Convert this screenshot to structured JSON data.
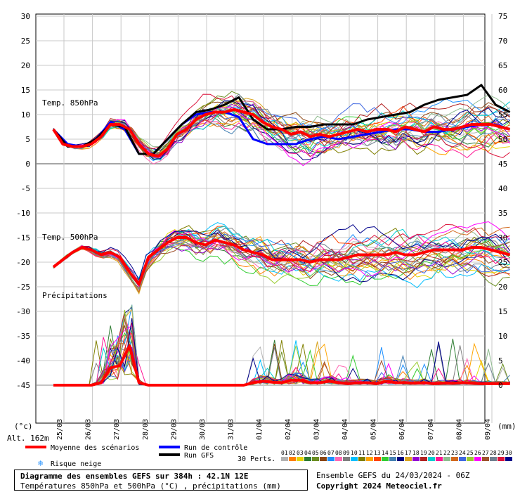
{
  "chart_data": {
    "type": "line",
    "x_ticks": [
      "25/03",
      "26/03",
      "27/03",
      "28/03",
      "29/03",
      "30/03",
      "31/03",
      "01/04",
      "02/04",
      "03/04",
      "04/04",
      "05/04",
      "06/04",
      "07/04",
      "08/04",
      "09/04"
    ],
    "y_left_ticks": [
      30,
      25,
      20,
      15,
      10,
      5,
      0,
      -5,
      -10,
      -15,
      -20,
      -25,
      -30,
      -35,
      -40,
      -45
    ],
    "y_right_ticks": [
      75,
      70,
      65,
      60,
      55,
      50,
      45,
      40,
      35,
      30,
      25,
      20,
      15,
      10,
      5,
      0
    ],
    "y_left_unit": "(°c)",
    "y_right_unit": "(mm)",
    "altitude_label": "Alt. 162m",
    "section_labels": [
      "Temp. 850hPa",
      "Temp. 500hPa",
      "Précipitations"
    ],
    "grid": true,
    "series": [
      {
        "name": "Moyenne des scénarios - T850",
        "color": "#ff0000",
        "x": [
          0,
          0.33,
          0.67,
          1,
          1.33,
          1.67,
          2,
          2.33,
          2.67,
          3,
          3.33,
          3.67,
          4,
          4.33,
          4.67,
          5,
          5.33,
          5.67,
          6,
          6.33,
          6.67,
          7,
          7.33,
          7.67,
          8,
          8.33,
          8.67,
          9,
          9.33,
          9.67,
          10,
          10.33,
          10.67,
          11,
          11.33,
          11.67,
          12,
          12.33,
          12.67,
          13,
          13.33,
          13.67,
          14,
          14.33,
          14.67,
          15,
          15.33,
          15.67,
          16
        ],
        "values": [
          7,
          4,
          3.5,
          3.5,
          4,
          5.5,
          8,
          8,
          7,
          4,
          2,
          1.5,
          3,
          6,
          7,
          9,
          10,
          10.5,
          10.5,
          11,
          10.5,
          10,
          8.5,
          7.5,
          7,
          6,
          6.5,
          5.5,
          6,
          5.5,
          6,
          6.5,
          7,
          6.5,
          7,
          7,
          6.5,
          7.5,
          7,
          6.5,
          7.5,
          7,
          7,
          7.5,
          8,
          8,
          8,
          7.5,
          7
        ]
      },
      {
        "name": "Moyenne des scénarios - T500",
        "color": "#ff0000",
        "x": [
          0,
          0.33,
          0.67,
          1,
          1.33,
          1.67,
          2,
          2.33,
          2.67,
          3,
          3.33,
          3.67,
          4,
          4.33,
          4.67,
          5,
          5.33,
          5.67,
          6,
          6.33,
          6.67,
          7,
          7.33,
          7.67,
          8,
          8.33,
          8.67,
          9,
          9.33,
          9.67,
          10,
          10.33,
          10.67,
          11,
          11.33,
          11.67,
          12,
          12.33,
          12.67,
          13,
          13.33,
          13.67,
          14,
          14.33,
          14.67,
          15,
          15.33,
          15.67,
          16
        ],
        "values": [
          -21,
          -19.5,
          -18,
          -17,
          -17.5,
          -18.5,
          -18,
          -19,
          -22,
          -24.5,
          -19,
          -17.5,
          -16,
          -15,
          -15,
          -16,
          -16.5,
          -15.5,
          -16,
          -16.5,
          -17.5,
          -18,
          -18.5,
          -19.5,
          -19.5,
          -19.5,
          -19.5,
          -20,
          -19.5,
          -19.5,
          -19.5,
          -19,
          -18.5,
          -18.5,
          -18.5,
          -18.5,
          -18,
          -18.5,
          -18.5,
          -18,
          -17.5,
          -17.5,
          -17.5,
          -17.5,
          -17,
          -17,
          -17.5,
          -18,
          -18.5
        ]
      },
      {
        "name": "Moyenne des scénarios - Précipitations",
        "color": "#ff0000",
        "x": [
          0,
          0.33,
          0.67,
          1,
          1.33,
          1.67,
          2,
          2.33,
          2.67,
          3,
          3.33,
          3.67,
          4,
          4.33,
          4.67,
          5,
          5.33,
          5.67,
          6,
          6.33,
          6.67,
          7,
          7.33,
          7.67,
          8,
          8.33,
          8.67,
          9,
          9.33,
          9.67,
          10,
          10.33,
          10.67,
          11,
          11.33,
          11.67,
          12,
          12.33,
          12.67,
          13,
          13.33,
          13.67,
          14,
          14.33,
          14.67,
          15,
          15.33,
          15.67,
          16
        ],
        "values": [
          0,
          0,
          0,
          0,
          0,
          0.5,
          3.5,
          4,
          8,
          0.5,
          0,
          0,
          0,
          0,
          0,
          0,
          0,
          0,
          0,
          0,
          0,
          0.5,
          0.8,
          0.6,
          0.5,
          1,
          1,
          0.5,
          0.5,
          0.8,
          0.5,
          0.3,
          0.5,
          0.5,
          0.3,
          0.8,
          0.5,
          0.5,
          0.4,
          0.5,
          0.3,
          0.4,
          0.4,
          0.5,
          0.4,
          0.3,
          0.3,
          0.3,
          0.3
        ]
      },
      {
        "name": "Run de contrôle",
        "color": "#0000ff",
        "x": [
          0,
          0.5,
          1,
          1.5,
          2,
          2.5,
          3,
          3.5,
          4,
          4.5,
          5,
          5.5,
          6,
          6.5,
          7,
          7.5,
          8,
          8.5,
          9,
          9.5,
          10,
          10.5,
          11,
          11.5,
          12,
          12.5,
          13,
          13.5,
          14,
          14.5,
          15,
          15.5,
          16
        ],
        "values": [
          7,
          4,
          3.5,
          5,
          8.5,
          7,
          2,
          2,
          5,
          8,
          10,
          10.5,
          10.5,
          9.5,
          5,
          4,
          4,
          4,
          5,
          5.5,
          5,
          5.5,
          6,
          6.5,
          7,
          7,
          6.5,
          6.5,
          7,
          7.5,
          8,
          8,
          7
        ]
      },
      {
        "name": "Run GFS",
        "color": "#000000",
        "x": [
          0,
          0.5,
          1,
          1.5,
          2,
          2.5,
          3,
          3.5,
          4,
          4.5,
          5,
          5.5,
          6,
          6.5,
          7,
          7.5,
          8,
          8.5,
          9,
          9.5,
          10,
          10.5,
          11,
          11.5,
          12,
          12.5,
          13,
          13.5,
          14,
          14.5,
          15,
          15.5,
          16
        ],
        "values": [
          7,
          3.5,
          3.5,
          5,
          8,
          7.5,
          2,
          2,
          5,
          8,
          10.5,
          11,
          12,
          13.5,
          9,
          7,
          7,
          7.5,
          7.5,
          8,
          8,
          8,
          9,
          9.5,
          10,
          10.5,
          12,
          13,
          13.5,
          14,
          16,
          12,
          10.5
        ]
      }
    ],
    "legend": {
      "mean": "Moyenne des scénarios",
      "control": "Run de contrôle",
      "gfs": "Run GFS",
      "snow": "Risque neige",
      "perts_label": "30 Perts.",
      "perts_codes": [
        "01",
        "02",
        "03",
        "04",
        "05",
        "06",
        "07",
        "08",
        "09",
        "10",
        "11",
        "12",
        "13",
        "14",
        "15",
        "16",
        "17",
        "18",
        "19",
        "20",
        "21",
        "22",
        "23",
        "24",
        "25",
        "26",
        "27",
        "28",
        "29",
        "30"
      ],
      "perts_colors": [
        "#b3b3b3",
        "#ff7f00",
        "#e4d400",
        "#2e7d32",
        "#6b8e23",
        "#8b4513",
        "#1e90ff",
        "#ff69b4",
        "#7f7f7f",
        "#00bfff",
        "#808000",
        "#ffa500",
        "#ff4500",
        "#32cd32",
        "#4682b4",
        "#000080",
        "#daa520",
        "#9400d3",
        "#b22222",
        "#00ced1",
        "#ff1493",
        "#8fbc8f",
        "#d2691e",
        "#4169e1",
        "#9acd32",
        "#ff00ff",
        "#a0522d",
        "#708090",
        "#dc143c",
        "#00008b"
      ]
    },
    "title": "Diagramme des ensembles GEFS sur 384h : 42.1N 12E",
    "subtitle": "Températures 850hPa et 500hPa (°C) , précipitations (mm)",
    "run_info": "Ensemble GEFS du 24/03/2024 - 06Z",
    "copyright": "Copyright 2024 Meteociel.fr"
  }
}
